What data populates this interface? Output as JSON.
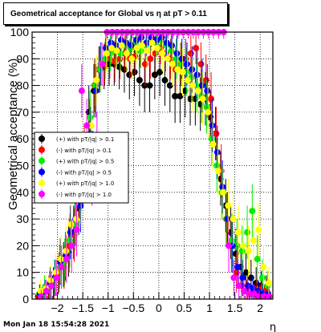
{
  "footer": {
    "timestamp": "Mon Jan 18 15:54:28 2021"
  },
  "chart_data": {
    "type": "scatter",
    "title": "Geometrical acceptance for Global vs   η at pT > 0.11",
    "xlabel": "η",
    "ylabel": "Geometrical acceptance (%)",
    "xlim": [
      -2.5,
      2.25
    ],
    "ylim": [
      0,
      100
    ],
    "xticks": [
      -2,
      -1.5,
      -1,
      -0.5,
      0,
      0.5,
      1,
      1.5,
      2
    ],
    "xtick_labels": [
      "−2",
      "−1.5",
      "−1",
      "−0.5",
      "0",
      "0.5",
      "1",
      "1.5",
      "2"
    ],
    "yticks": [
      0,
      10,
      20,
      30,
      40,
      50,
      60,
      70,
      80,
      90,
      100
    ],
    "ytick_labels": [
      "0",
      "10",
      "20",
      "30",
      "40",
      "50",
      "60",
      "70",
      "80",
      "90",
      "100"
    ],
    "grid": true,
    "legend_position": "left",
    "series": [
      {
        "name": "(+) with pT/|q| > 0.1",
        "color": "#000000",
        "x": [
          -2.35,
          -2.25,
          -2.15,
          -2.05,
          -1.95,
          -1.85,
          -1.75,
          -1.65,
          -1.55,
          -1.45,
          -1.35,
          -1.25,
          -1.15,
          -1.05,
          -0.95,
          -0.85,
          -0.75,
          -0.65,
          -0.55,
          -0.45,
          -0.35,
          -0.25,
          -0.15,
          -0.05,
          0.05,
          0.15,
          0.25,
          0.35,
          0.45,
          0.55,
          0.65,
          0.75,
          0.85,
          0.95,
          1.05,
          1.15,
          1.25,
          1.35,
          1.45,
          1.55,
          1.65,
          1.75,
          1.85,
          1.95,
          2.05,
          2.15
        ],
        "y": [
          1,
          2,
          3,
          6,
          9,
          13,
          18,
          25,
          34,
          50,
          70,
          78,
          86,
          87,
          88,
          88,
          87,
          86,
          84,
          85,
          82,
          80,
          80,
          84,
          85,
          82,
          80,
          76,
          76,
          78,
          75,
          75,
          73,
          75,
          68,
          62,
          45,
          35,
          25,
          17,
          12,
          10,
          8,
          6,
          5,
          4
        ]
      },
      {
        "name": "(-) with pT/|q| > 0.1",
        "color": "#ff0000",
        "x": [
          -2.35,
          -2.25,
          -2.15,
          -2.05,
          -1.95,
          -1.85,
          -1.75,
          -1.65,
          -1.55,
          -1.45,
          -1.35,
          -1.25,
          -1.15,
          -1.05,
          -0.95,
          -0.85,
          -0.75,
          -0.65,
          -0.55,
          -0.45,
          -0.35,
          -0.25,
          -0.15,
          -0.05,
          0.05,
          0.15,
          0.25,
          0.35,
          0.45,
          0.55,
          0.65,
          0.75,
          0.85,
          0.95,
          1.05,
          1.15,
          1.25,
          1.35,
          1.45,
          1.55,
          1.65,
          1.75,
          1.85,
          1.95,
          2.05,
          2.15
        ],
        "y": [
          1,
          2,
          4,
          5,
          10,
          12,
          20,
          24,
          40,
          55,
          65,
          80,
          86,
          88,
          90,
          89,
          90,
          92,
          90,
          91,
          93,
          88,
          90,
          92,
          94,
          92,
          90,
          86,
          88,
          90,
          92,
          94,
          88,
          82,
          75,
          62,
          48,
          30,
          20,
          10,
          5,
          3,
          2,
          3,
          4,
          3
        ]
      },
      {
        "name": "(+) with pT/|q| > 0.5",
        "color": "#00ee00",
        "x": [
          -2.35,
          -2.25,
          -2.15,
          -2.05,
          -1.95,
          -1.85,
          -1.75,
          -1.65,
          -1.55,
          -1.45,
          -1.35,
          -1.25,
          -1.15,
          -1.05,
          -0.95,
          -0.85,
          -0.75,
          -0.65,
          -0.55,
          -0.45,
          -0.35,
          -0.25,
          -0.15,
          -0.05,
          0.05,
          0.15,
          0.25,
          0.35,
          0.45,
          0.55,
          0.65,
          0.75,
          0.85,
          0.95,
          1.05,
          1.15,
          1.25,
          1.35,
          1.45,
          1.55,
          1.65,
          1.75,
          1.85,
          1.95,
          2.05,
          2.15
        ],
        "y": [
          2,
          4,
          5,
          8,
          12,
          14,
          22,
          28,
          40,
          52,
          68,
          80,
          86,
          90,
          92,
          93,
          92,
          95,
          94,
          96,
          93,
          95,
          97,
          96,
          97,
          95,
          93,
          90,
          88,
          85,
          83,
          80,
          76,
          72,
          60,
          50,
          40,
          30,
          22,
          20,
          18,
          25,
          33,
          15,
          8,
          5
        ]
      },
      {
        "name": "(-) with pT/|q| > 0.5",
        "color": "#0000ff",
        "x": [
          -2.35,
          -2.25,
          -2.15,
          -2.05,
          -1.95,
          -1.85,
          -1.75,
          -1.65,
          -1.55,
          -1.45,
          -1.35,
          -1.25,
          -1.15,
          -1.05,
          -0.95,
          -0.85,
          -0.75,
          -0.65,
          -0.55,
          -0.45,
          -0.35,
          -0.25,
          -0.15,
          -0.05,
          0.05,
          0.15,
          0.25,
          0.35,
          0.45,
          0.55,
          0.65,
          0.75,
          0.85,
          0.95,
          1.05,
          1.15,
          1.25,
          1.35,
          1.45,
          1.55,
          1.65,
          1.75,
          1.85,
          1.95,
          2.05,
          2.15
        ],
        "y": [
          2,
          3,
          6,
          8,
          14,
          16,
          25,
          30,
          35,
          48,
          62,
          78,
          88,
          94,
          96,
          95,
          97,
          96,
          95,
          97,
          98,
          96,
          98,
          97,
          98,
          96,
          95,
          92,
          90,
          88,
          86,
          84,
          80,
          78,
          65,
          55,
          42,
          30,
          20,
          12,
          8,
          5,
          4,
          3,
          2,
          2
        ]
      },
      {
        "name": "(+) with pT/|q| > 1.0",
        "color": "#ffff00",
        "x": [
          -2.35,
          -2.25,
          -2.15,
          -2.05,
          -1.95,
          -1.85,
          -1.75,
          -1.65,
          -1.55,
          -1.45,
          -1.35,
          -1.25,
          -1.15,
          -1.05,
          -0.95,
          -0.85,
          -0.75,
          -0.65,
          -0.55,
          -0.45,
          -0.35,
          -0.25,
          -0.15,
          -0.05,
          0.05,
          0.15,
          0.25,
          0.35,
          0.45,
          0.55,
          0.65,
          0.75,
          0.85,
          0.95,
          1.05,
          1.15,
          1.25,
          1.35,
          1.45,
          1.55,
          1.65,
          1.75,
          1.85,
          1.95,
          2.05,
          2.15
        ],
        "y": [
          3,
          4,
          7,
          10,
          15,
          18,
          28,
          30,
          38,
          50,
          65,
          82,
          88,
          92,
          94,
          93,
          95,
          92,
          90,
          94,
          95,
          93,
          96,
          94,
          92,
          90,
          88,
          86,
          85,
          82,
          80,
          78,
          75,
          70,
          58,
          48,
          40,
          35,
          30,
          25,
          20,
          18,
          22,
          26,
          12,
          6
        ]
      },
      {
        "name": "(-) with pT/|q| > 1.0",
        "color": "#ff00ff",
        "x": [
          -2.35,
          -2.25,
          -2.15,
          -2.05,
          -1.95,
          -1.85,
          -1.75,
          -1.65,
          -1.55,
          -1.45,
          -1.35,
          -1.25,
          -1.15,
          -1.05,
          -0.95,
          -0.85,
          -0.75,
          -0.65,
          -0.55,
          -0.45,
          -0.35,
          -0.25,
          -0.15,
          -0.05,
          0.05,
          0.15,
          0.25,
          0.35,
          0.45,
          0.55,
          0.65,
          0.75,
          0.85,
          0.95,
          1.05,
          1.15,
          1.25,
          1.35,
          1.45,
          1.55,
          1.65,
          1.75,
          1.85,
          1.95,
          2.05,
          2.15
        ],
        "y": [
          1,
          3,
          5,
          8,
          12,
          15,
          20,
          26,
          78,
          65,
          45,
          60,
          88,
          100,
          100,
          100,
          100,
          100,
          100,
          100,
          100,
          100,
          100,
          100,
          100,
          100,
          100,
          100,
          100,
          100,
          100,
          100,
          100,
          100,
          100,
          100,
          100,
          20,
          8,
          5,
          3,
          2,
          2,
          1,
          1,
          1
        ]
      }
    ]
  }
}
